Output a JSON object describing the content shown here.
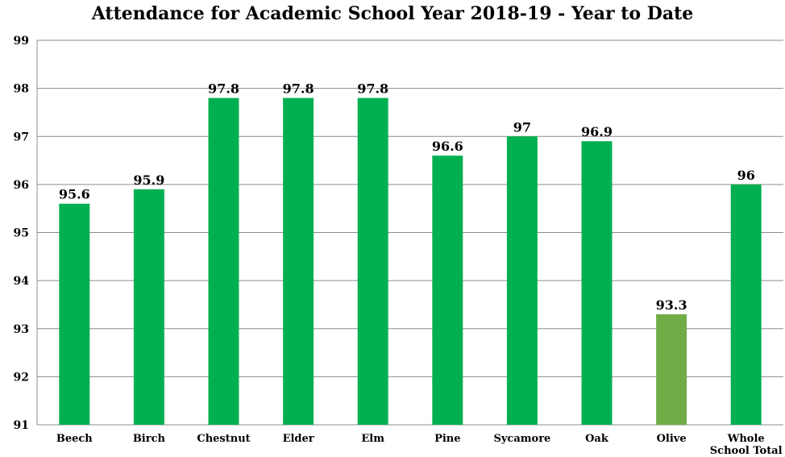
{
  "chart_data": {
    "type": "bar",
    "title": "Attendance for Academic School Year 2018-19 - Year to Date",
    "categories": [
      "Beech",
      "Birch",
      "Chestnut",
      "Elder",
      "Elm",
      "Pine",
      "Sycamore",
      "Oak",
      "Olive",
      "Whole School Total"
    ],
    "category_lines": [
      [
        "Beech"
      ],
      [
        "Birch"
      ],
      [
        "Chestnut"
      ],
      [
        "Elder"
      ],
      [
        "Elm"
      ],
      [
        "Pine"
      ],
      [
        "Sycamore"
      ],
      [
        "Oak"
      ],
      [
        "Olive"
      ],
      [
        "Whole",
        "School Total"
      ]
    ],
    "values": [
      95.6,
      95.9,
      97.8,
      97.8,
      97.8,
      96.6,
      97,
      96.9,
      93.3,
      96
    ],
    "value_labels": [
      "95.6",
      "95.9",
      "97.8",
      "97.8",
      "97.8",
      "96.6",
      "97",
      "96.9",
      "93.3",
      "96"
    ],
    "bar_colors": [
      "#00b050",
      "#00b050",
      "#00b050",
      "#00b050",
      "#00b050",
      "#00b050",
      "#00b050",
      "#00b050",
      "#70ad47",
      "#00b050"
    ],
    "ylim": [
      91,
      99
    ],
    "yticks": [
      91,
      92,
      93,
      94,
      95,
      96,
      97,
      98,
      99
    ],
    "xlabel": "",
    "ylabel": "",
    "grid": true,
    "legend": "none"
  }
}
